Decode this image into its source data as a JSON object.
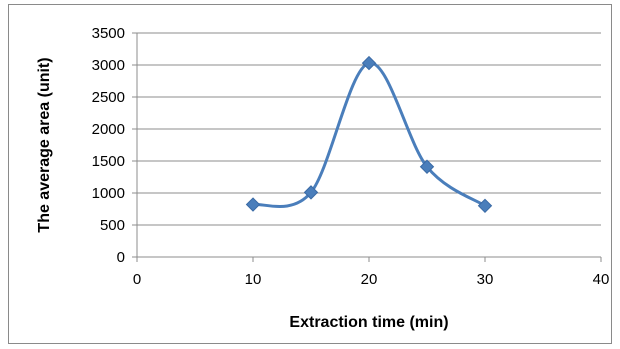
{
  "chart_data": {
    "type": "line",
    "title": "",
    "xlabel": "Extraction time (min)",
    "ylabel": "The average area (unit)",
    "xlim": [
      0,
      40
    ],
    "ylim": [
      0,
      3500
    ],
    "x_ticks": [
      0,
      10,
      20,
      30,
      40
    ],
    "y_ticks": [
      0,
      500,
      1000,
      1500,
      2000,
      2500,
      3000,
      3500
    ],
    "grid": "horizontal",
    "legend": "none",
    "smooth": true,
    "series": [
      {
        "color": "#4a7ebb",
        "marker": "diamond",
        "x": [
          10,
          15,
          20,
          25,
          30
        ],
        "y": [
          820,
          1010,
          3030,
          1410,
          800
        ]
      }
    ]
  }
}
